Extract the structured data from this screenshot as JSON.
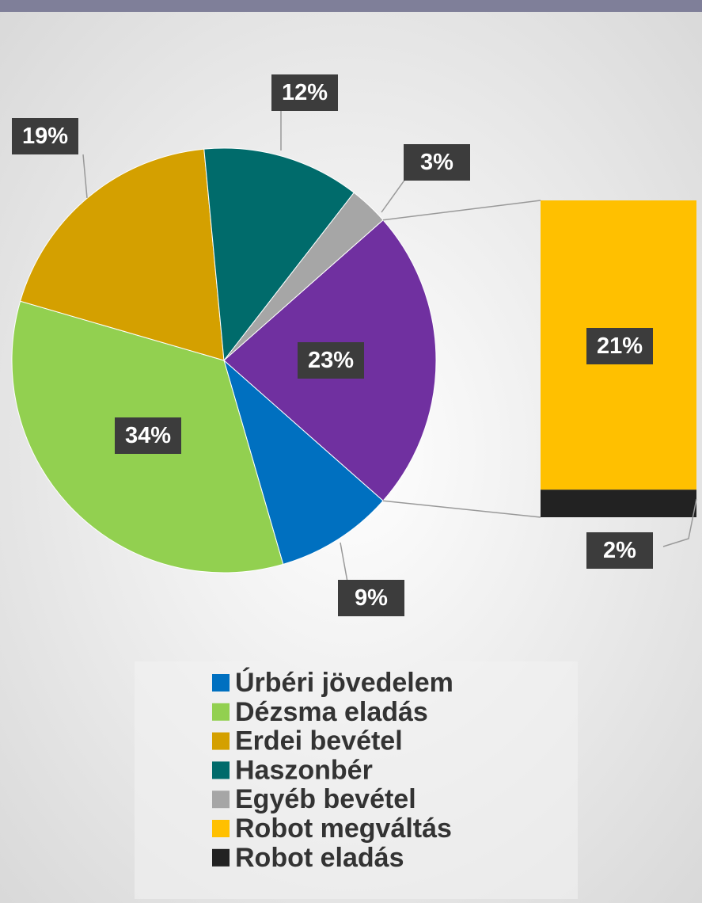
{
  "chart_data": {
    "type": "pie_of_bar",
    "categories": [
      "Úrbéri jövedelem",
      "Dézsma eladás",
      "Erdei bevétel",
      "Haszonbér",
      "Egyéb bevétel",
      "Robot megváltás",
      "Robot eladás"
    ],
    "values": [
      9,
      34,
      19,
      12,
      3,
      21,
      2
    ],
    "value_labels": [
      "9%",
      "34%",
      "19%",
      "12%",
      "3%",
      "21%",
      "2%"
    ],
    "colors": [
      "#0070c0",
      "#92d050",
      "#d4a000",
      "#006b6b",
      "#a6a6a6",
      "#ffc000",
      "#222222"
    ],
    "second_plot_values": 2,
    "other": {
      "value": 23,
      "value_label": "23%",
      "color": "#7030a0"
    },
    "legend": "bottom"
  }
}
